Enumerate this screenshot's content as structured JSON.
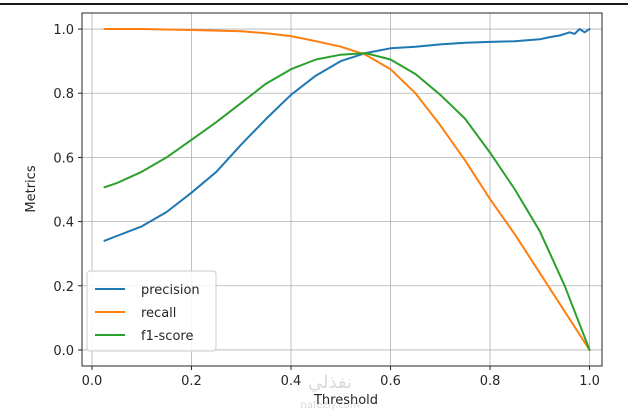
{
  "chart_data": {
    "type": "line",
    "title": "",
    "xlabel": "Threshold",
    "ylabel": "Metrics",
    "xlim": [
      -0.02,
      1.025
    ],
    "ylim": [
      -0.05,
      1.05
    ],
    "xticks": [
      0.0,
      0.2,
      0.4,
      0.6,
      0.8,
      1.0
    ],
    "xtick_labels": [
      "0.0",
      "0.2",
      "0.4",
      "0.6",
      "0.8",
      "1.0"
    ],
    "yticks": [
      0.0,
      0.2,
      0.4,
      0.6,
      0.8,
      1.0
    ],
    "ytick_labels": [
      "0.0",
      "0.2",
      "0.4",
      "0.6",
      "0.8",
      "1.0"
    ],
    "grid": true,
    "legend_position": "lower-left",
    "series": [
      {
        "name": "precision",
        "color": "#1f77b4",
        "x": [
          0.025,
          0.05,
          0.1,
          0.15,
          0.2,
          0.25,
          0.3,
          0.35,
          0.4,
          0.45,
          0.5,
          0.55,
          0.6,
          0.65,
          0.7,
          0.75,
          0.8,
          0.85,
          0.9,
          0.92,
          0.94,
          0.96,
          0.97,
          0.98,
          0.99,
          1.0
        ],
        "y": [
          0.34,
          0.355,
          0.385,
          0.43,
          0.49,
          0.555,
          0.64,
          0.72,
          0.795,
          0.855,
          0.9,
          0.925,
          0.94,
          0.945,
          0.952,
          0.957,
          0.96,
          0.962,
          0.968,
          0.975,
          0.98,
          0.99,
          0.985,
          1.0,
          0.99,
          1.0
        ]
      },
      {
        "name": "recall",
        "color": "#ff7f0e",
        "x": [
          0.025,
          0.1,
          0.2,
          0.3,
          0.35,
          0.4,
          0.45,
          0.5,
          0.55,
          0.6,
          0.65,
          0.7,
          0.75,
          0.8,
          0.85,
          0.9,
          0.95,
          1.0
        ],
        "y": [
          1.0,
          1.0,
          0.997,
          0.993,
          0.987,
          0.978,
          0.962,
          0.945,
          0.92,
          0.875,
          0.8,
          0.7,
          0.59,
          0.47,
          0.36,
          0.24,
          0.12,
          0.0
        ]
      },
      {
        "name": "f1-score",
        "color": "#2ca02c",
        "x": [
          0.025,
          0.05,
          0.1,
          0.15,
          0.2,
          0.25,
          0.3,
          0.35,
          0.4,
          0.45,
          0.5,
          0.55,
          0.6,
          0.65,
          0.7,
          0.75,
          0.8,
          0.85,
          0.9,
          0.95,
          1.0
        ],
        "y": [
          0.507,
          0.52,
          0.555,
          0.6,
          0.655,
          0.71,
          0.77,
          0.83,
          0.875,
          0.905,
          0.92,
          0.925,
          0.905,
          0.86,
          0.795,
          0.72,
          0.615,
          0.5,
          0.37,
          0.2,
          0.0
        ]
      }
    ]
  },
  "watermark": {
    "text": "نفذلي",
    "subtext": "nafezly.com"
  }
}
